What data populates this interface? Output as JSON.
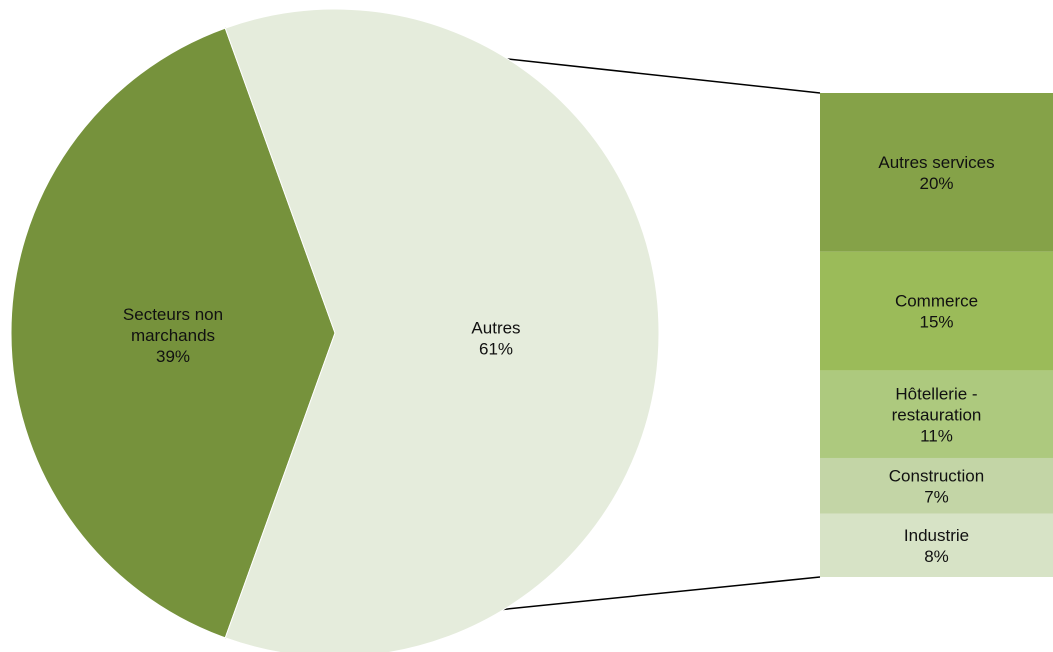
{
  "chart_data": {
    "type": "bar-of-pie",
    "pie": {
      "slices": [
        {
          "label": "Secteurs non marchands",
          "label_lines": [
            "Secteurs non",
            "marchands"
          ],
          "value": 39,
          "value_label": "39%",
          "color": "#76923c"
        },
        {
          "label": "Autres",
          "label_lines": [
            "Autres"
          ],
          "value": 61,
          "value_label": "61%",
          "color": "#e5ecdc"
        }
      ]
    },
    "bar": {
      "breakdown_of": "Autres",
      "segments": [
        {
          "label": "Autres services",
          "label_lines": [
            "Autres services"
          ],
          "value": 20,
          "value_label": "20%",
          "color": "#85a248"
        },
        {
          "label": "Commerce",
          "label_lines": [
            "Commerce"
          ],
          "value": 15,
          "value_label": "15%",
          "color": "#9bbb59"
        },
        {
          "label": "Hôtellerie - restauration",
          "label_lines": [
            "Hôtellerie -",
            "restauration"
          ],
          "value": 11,
          "value_label": "11%",
          "color": "#adc97e"
        },
        {
          "label": "Construction",
          "label_lines": [
            "Construction"
          ],
          "value": 7,
          "value_label": "7%",
          "color": "#c3d5a6"
        },
        {
          "label": "Industrie",
          "label_lines": [
            "Industrie"
          ],
          "value": 8,
          "value_label": "8%",
          "color": "#d7e3c6"
        }
      ]
    },
    "connector_color": "#000000"
  }
}
